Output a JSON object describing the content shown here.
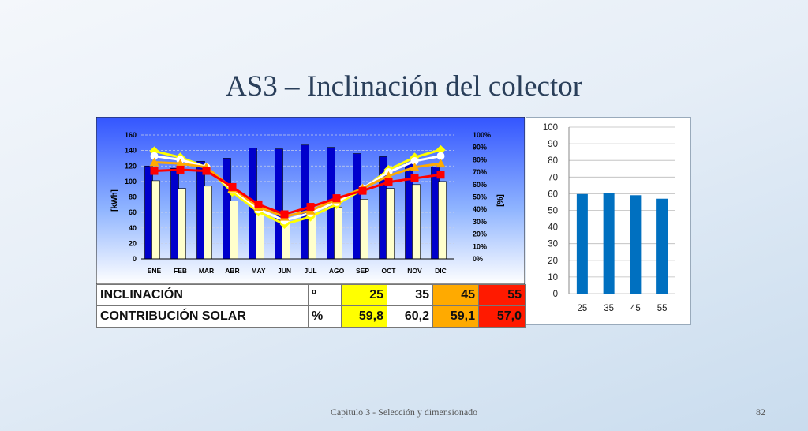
{
  "slide": {
    "title": "AS3 – Inclinación del colector",
    "footer": "Capitulo 3 - Selección y dimensionado",
    "page_number": "82"
  },
  "table": {
    "rows": [
      {
        "label": "INCLINACIÓN",
        "unit": "º",
        "values": [
          "25",
          "35",
          "45",
          "55"
        ]
      },
      {
        "label": "CONTRIBUCIÓN SOLAR",
        "unit": "%",
        "values": [
          "59,8",
          "60,2",
          "59,1",
          "57,0"
        ]
      }
    ],
    "column_colors": [
      "#ffff00",
      "#ffffff",
      "#ffaa00",
      "#ff1a00"
    ]
  },
  "chart_data": [
    {
      "type": "bar",
      "categories": [
        "ENE",
        "FEB",
        "MAR",
        "ABR",
        "MAY",
        "JUN",
        "JUL",
        "AGO",
        "SEP",
        "OCT",
        "NOV",
        "DIC"
      ],
      "ylabel": "[kWh]",
      "y2label": "[%]",
      "ylim": [
        0,
        160
      ],
      "y2lim": [
        0,
        100
      ],
      "yticks": [
        "0",
        "20",
        "40",
        "60",
        "80",
        "100",
        "120",
        "140",
        "160"
      ],
      "y2ticks": [
        "0%",
        "10%",
        "20%",
        "30%",
        "40%",
        "50%",
        "60%",
        "70%",
        "80%",
        "90%",
        "100%"
      ],
      "grid": true,
      "bar_series": [
        {
          "color": "#0000cc",
          "values": [
            120,
            117,
            126,
            130,
            143,
            142,
            147,
            144,
            136,
            132,
            124,
            119
          ]
        },
        {
          "color": "#ffffcc",
          "values": [
            101,
            91,
            94,
            75,
            60,
            50,
            57,
            67,
            77,
            91,
            96,
            100
          ]
        }
      ],
      "line_series": [
        {
          "color": "#ffff00",
          "marker": "diamond",
          "values": [
            87,
            82,
            74,
            54,
            38,
            28,
            34,
            44,
            56,
            72,
            82,
            88
          ]
        },
        {
          "color": "#ffffff",
          "marker": "circle",
          "values": [
            83,
            80,
            74,
            56,
            40,
            31,
            37,
            46,
            57,
            70,
            79,
            83
          ]
        },
        {
          "color": "#ffaa00",
          "marker": "triangle",
          "values": [
            78,
            77,
            74,
            57,
            42,
            34,
            39,
            48,
            57,
            67,
            74,
            77
          ]
        },
        {
          "color": "#ff0000",
          "marker": "square",
          "values": [
            71,
            72,
            71,
            58,
            44,
            36,
            42,
            49,
            55,
            62,
            65,
            68
          ]
        }
      ]
    },
    {
      "type": "bar",
      "categories": [
        "25",
        "35",
        "45",
        "55"
      ],
      "values": [
        59.8,
        60.2,
        59.1,
        57.0
      ],
      "ylim": [
        0,
        100
      ],
      "yticks": [
        "0",
        "10",
        "20",
        "30",
        "40",
        "50",
        "60",
        "70",
        "80",
        "90",
        "100"
      ],
      "grid": true,
      "color": "#0070c0"
    }
  ]
}
